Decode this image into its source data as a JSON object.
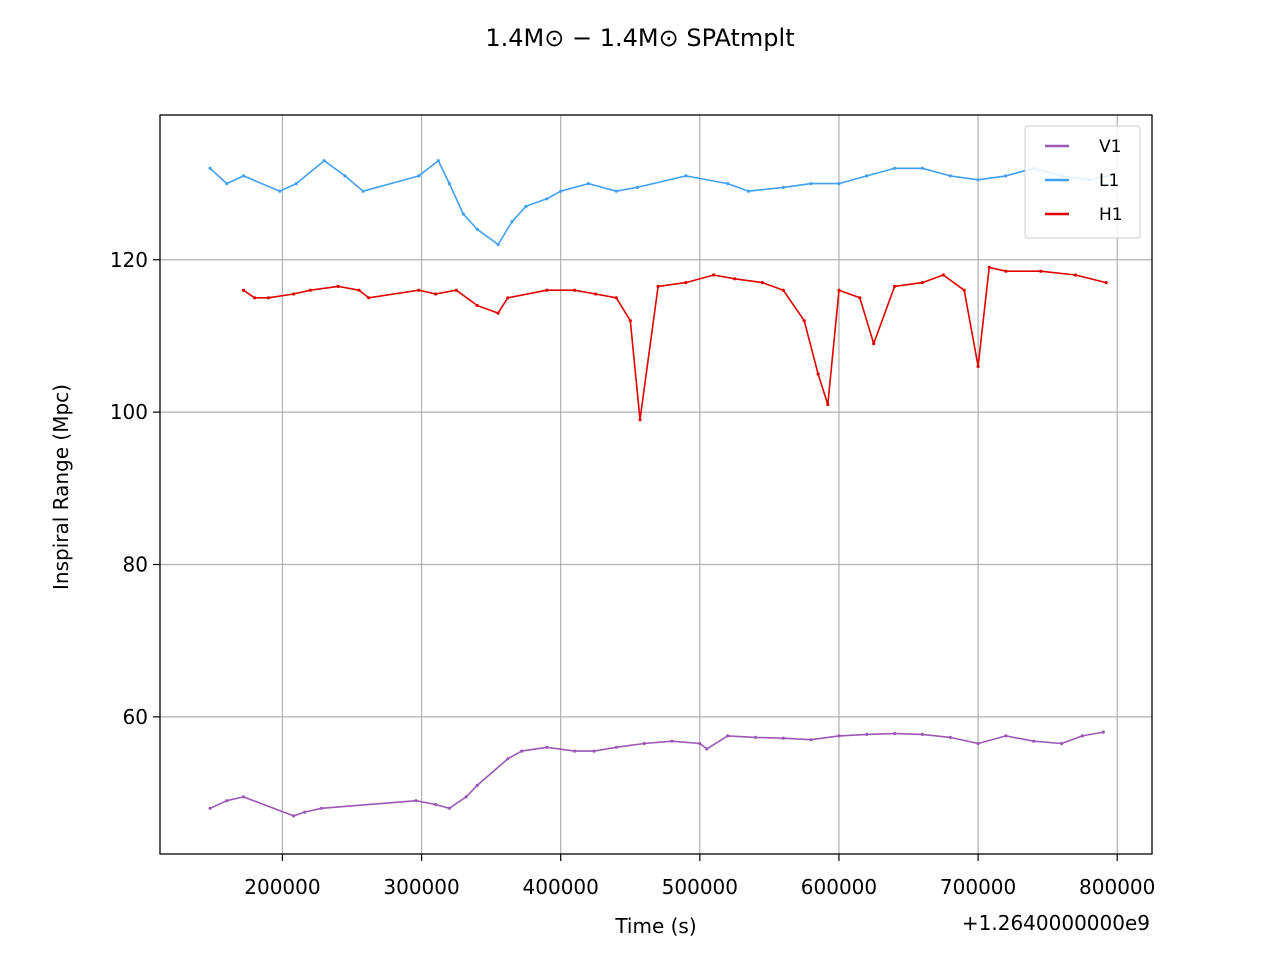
{
  "chart_data": {
    "type": "line",
    "title": "1.4M⊙ − 1.4M⊙ SPAtmplt",
    "xlabel": "Time (s)",
    "ylabel": "Inspiral Range (Mpc)",
    "x_offset_label": "+1.2640000000e9",
    "xlim": [
      112000,
      825000
    ],
    "ylim": [
      42,
      139
    ],
    "xticks": [
      200000,
      300000,
      400000,
      500000,
      600000,
      700000,
      800000
    ],
    "yticks": [
      60,
      80,
      100,
      120
    ],
    "grid": true,
    "legend_position": "upper-right",
    "series": [
      {
        "name": "V1",
        "color": "#9b59b6",
        "x": [
          148000,
          160000,
          172000,
          208000,
          216000,
          228000,
          296000,
          310000,
          320000,
          332000,
          340000,
          362000,
          372000,
          390000,
          410000,
          424000,
          440000,
          460000,
          480000,
          500000,
          505000,
          520000,
          540000,
          560000,
          580000,
          600000,
          620000,
          640000,
          660000,
          680000,
          700000,
          720000,
          740000,
          760000,
          775000,
          790000
        ],
        "y": [
          48,
          49,
          49.5,
          47,
          47.5,
          48,
          49,
          48.5,
          48,
          49.5,
          51,
          54.5,
          55.5,
          56,
          55.5,
          55.5,
          56,
          56.5,
          56.8,
          56.5,
          55.8,
          57.5,
          57.3,
          57.2,
          57,
          57.5,
          57.7,
          57.8,
          57.7,
          57.3,
          56.5,
          57.5,
          56.8,
          56.5,
          57.5,
          58
        ]
      },
      {
        "name": "L1",
        "color": "#41a0f0",
        "x": [
          148000,
          160000,
          172000,
          198000,
          210000,
          230000,
          245000,
          258000,
          298000,
          312000,
          320000,
          330000,
          340000,
          355000,
          365000,
          375000,
          390000,
          400000,
          420000,
          440000,
          455000,
          490000,
          520000,
          535000,
          560000,
          580000,
          600000,
          620000,
          640000,
          660000,
          680000,
          700000,
          720000,
          740000,
          760000,
          780000,
          793000
        ],
        "y": [
          132,
          130,
          131,
          129,
          130,
          133,
          131,
          129,
          131,
          133,
          130,
          126,
          124,
          122,
          125,
          127,
          128,
          129,
          130,
          129,
          129.5,
          131,
          130,
          129,
          129.5,
          130,
          130,
          131,
          132,
          132,
          131,
          130.5,
          131,
          132,
          131,
          130.5,
          131
        ]
      },
      {
        "name": "H1",
        "color": "#e00000",
        "x": [
          172000,
          180000,
          190000,
          208000,
          220000,
          240000,
          255000,
          262000,
          298000,
          310000,
          325000,
          340000,
          355000,
          362000,
          390000,
          410000,
          425000,
          440000,
          450000,
          457000,
          470000,
          490000,
          510000,
          525000,
          545000,
          560000,
          575000,
          585000,
          592000,
          600000,
          615000,
          625000,
          640000,
          660000,
          675000,
          690000,
          700000,
          708000,
          720000,
          745000,
          770000,
          792000
        ],
        "y": [
          116,
          115,
          115,
          115.5,
          116,
          116.5,
          116,
          115,
          116,
          115.5,
          116,
          114,
          113,
          115,
          116,
          116,
          115.5,
          115,
          112,
          99,
          116.5,
          117,
          118,
          117.5,
          117,
          116,
          112,
          105,
          101,
          116,
          115,
          109,
          116.5,
          117,
          118,
          116,
          106,
          119,
          118.5,
          118.5,
          118,
          117
        ]
      }
    ]
  }
}
